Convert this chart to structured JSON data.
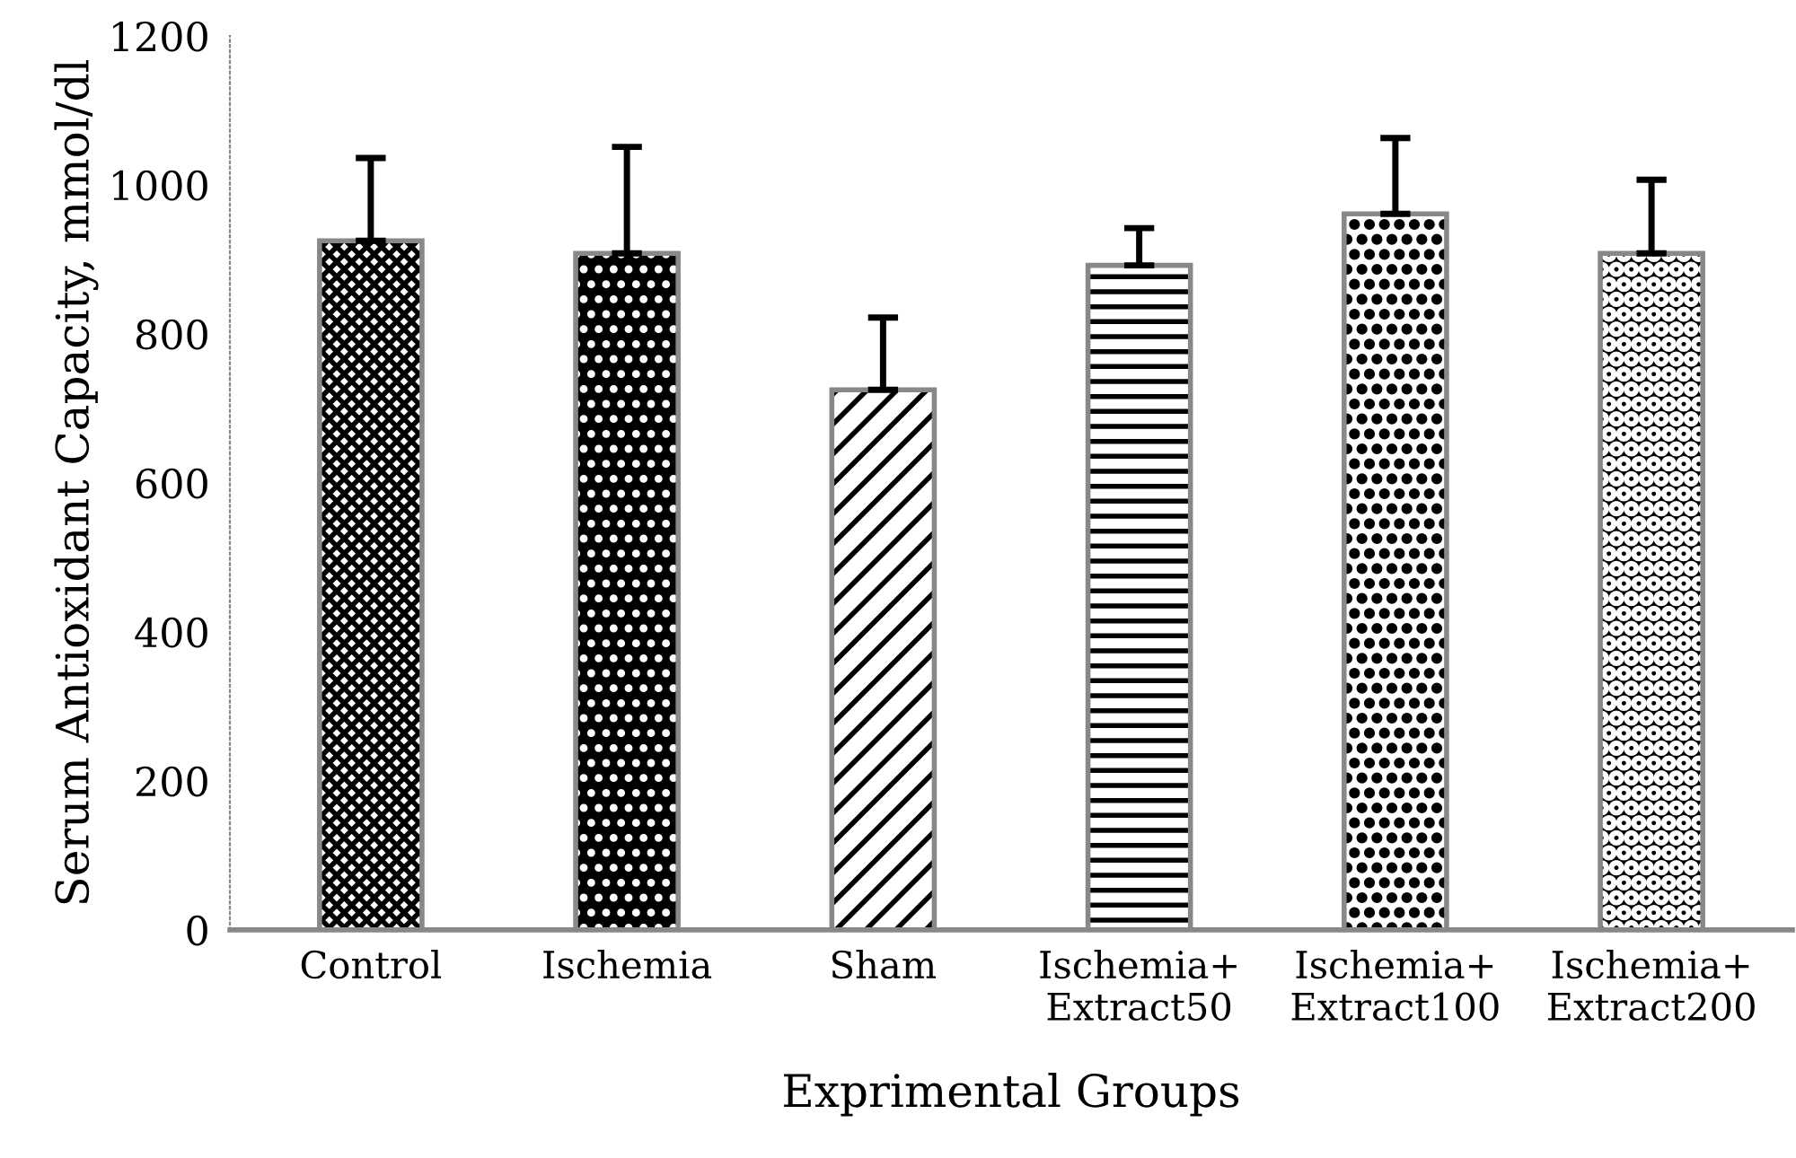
{
  "chart_data": {
    "type": "bar",
    "xlabel": "Exprimental Groups",
    "ylabel": "Serum Antioxidant Capacity, mmol/dl",
    "categories": [
      "Control",
      "Ischemia",
      "Sham",
      "Ischemia+\nExtract50",
      "Ischemia+\nExtract100",
      "Ischemia+\nExtract200"
    ],
    "values": [
      925,
      908,
      725,
      892,
      961,
      908
    ],
    "errors": [
      111,
      143,
      97,
      50,
      102,
      99
    ],
    "colors": [
      "#ffffff",
      "#000000",
      "#ffffff",
      "#ffffff",
      "#ffffff",
      "#000000"
    ],
    "ylim": [
      0,
      1200
    ],
    "yticks": [
      0,
      200,
      400,
      600,
      800,
      1000,
      1200
    ],
    "grid": false,
    "legend": false
  }
}
